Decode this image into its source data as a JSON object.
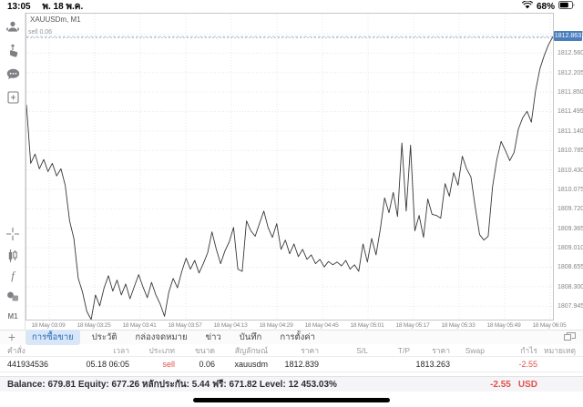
{
  "status_bar": {
    "time": "13:05",
    "date": "พ. 18 พ.ค.",
    "battery_pct": "68%"
  },
  "sidebar": {
    "icons": [
      "account-icon",
      "one-tap-trading-icon",
      "chat-icon",
      "new-order-icon",
      "crosshair-icon",
      "chart-type-icon",
      "indicators-icon",
      "objects-icon"
    ],
    "timeframe_label": "M1"
  },
  "chart": {
    "symbol_label": "XAUUSDm, M1",
    "sell_label": "sell 0.06",
    "current_price_tag": "1812.863"
  },
  "chart_data": {
    "type": "line",
    "title": "XAUUSDm, M1",
    "x_axis_labels": [
      "18 May 03:09",
      "18 May 03:25",
      "18 May 03:41",
      "18 May 03:57",
      "18 May 04:13",
      "18 May 04:29",
      "18 May 04:45",
      "18 May 05:01",
      "18 May 05:17",
      "18 May 05:33",
      "18 May 05:49",
      "18 May 06:05"
    ],
    "y_axis_labels": [
      "1812.915",
      "1812.560",
      "1812.205",
      "1811.850",
      "1811.495",
      "1811.140",
      "1810.785",
      "1810.430",
      "1810.075",
      "1809.720",
      "1809.365",
      "1809.010",
      "1808.655",
      "1808.300",
      "1807.945"
    ],
    "ylim": [
      1807.7,
      1813.28
    ],
    "grid": true,
    "legend": "none",
    "markers": {
      "sell_line_price": 1812.839,
      "sell_line_label": "sell 0.06",
      "current_price": 1812.863
    },
    "series": [
      {
        "name": "XAUUSDm M1 close",
        "values": [
          1811.62,
          1810.55,
          1810.72,
          1810.45,
          1810.62,
          1810.4,
          1810.55,
          1810.32,
          1810.45,
          1810.15,
          1809.5,
          1809.18,
          1808.45,
          1808.2,
          1807.85,
          1807.7,
          1808.15,
          1807.95,
          1808.28,
          1808.5,
          1808.22,
          1808.42,
          1808.15,
          1808.35,
          1808.08,
          1808.3,
          1808.52,
          1808.3,
          1808.1,
          1808.38,
          1808.15,
          1807.98,
          1807.76,
          1808.2,
          1808.45,
          1808.28,
          1808.58,
          1808.82,
          1808.62,
          1808.78,
          1808.55,
          1808.72,
          1808.92,
          1809.3,
          1808.98,
          1808.72,
          1808.95,
          1809.12,
          1809.38,
          1808.62,
          1808.58,
          1809.5,
          1809.32,
          1809.22,
          1809.45,
          1809.68,
          1809.38,
          1809.2,
          1809.45,
          1808.98,
          1809.15,
          1808.9,
          1809.08,
          1808.85,
          1808.98,
          1808.8,
          1808.88,
          1808.72,
          1808.8,
          1808.66,
          1808.76,
          1808.7,
          1808.75,
          1808.68,
          1808.78,
          1808.62,
          1808.7,
          1808.58,
          1809.08,
          1808.75,
          1809.18,
          1808.88,
          1809.35,
          1809.92,
          1809.65,
          1810.02,
          1809.58,
          1810.92,
          1809.68,
          1810.88,
          1809.32,
          1809.6,
          1809.2,
          1809.9,
          1809.62,
          1809.6,
          1809.55,
          1810.18,
          1809.95,
          1810.38,
          1810.15,
          1810.68,
          1810.45,
          1810.3,
          1809.75,
          1809.25,
          1809.15,
          1809.22,
          1810.12,
          1810.62,
          1810.95,
          1810.78,
          1810.6,
          1810.75,
          1811.18,
          1811.38,
          1811.5,
          1811.3,
          1811.88,
          1812.28,
          1812.52,
          1812.72,
          1812.86
        ]
      }
    ]
  },
  "tabs": {
    "add_label": "+",
    "items": [
      {
        "label": "การซื้อขาย",
        "selected": true
      },
      {
        "label": "ประวัติ",
        "selected": false
      },
      {
        "label": "กล่องจดหมาย",
        "selected": false
      },
      {
        "label": "ข่าว",
        "selected": false
      },
      {
        "label": "บันทึก",
        "selected": false
      },
      {
        "label": "การตั้งค่า",
        "selected": false
      }
    ]
  },
  "table": {
    "headers": [
      "คำสั่ง",
      "เวลา",
      "ประเภท",
      "ขนาด",
      "สัญลักษณ์",
      "ราคา",
      "S/L",
      "T/P",
      "ราคา",
      "Swap",
      "กำไร",
      "หมายเหตุ"
    ],
    "rows": [
      {
        "cells": [
          "441934536",
          "05.18 06:05",
          "sell",
          "0.06",
          "xauusdm",
          "1812.839",
          "",
          "",
          "1813.263",
          "",
          "-2.55",
          ""
        ],
        "red_indices": [
          2,
          10
        ]
      }
    ]
  },
  "summary": {
    "text": "Balance: 679.81 Equity: 677.26 หลักประกัน: 5.44 ฟรี: 671.82 Level: 12 453.03%",
    "profit": "-2.55",
    "currency": "USD"
  },
  "colors": {
    "accent_blue": "#4a7ebd",
    "loss_red": "#e2514d",
    "tab_selected_bg": "#d8e6f7",
    "grid": "#e7e7ea",
    "line": "#38383a"
  }
}
